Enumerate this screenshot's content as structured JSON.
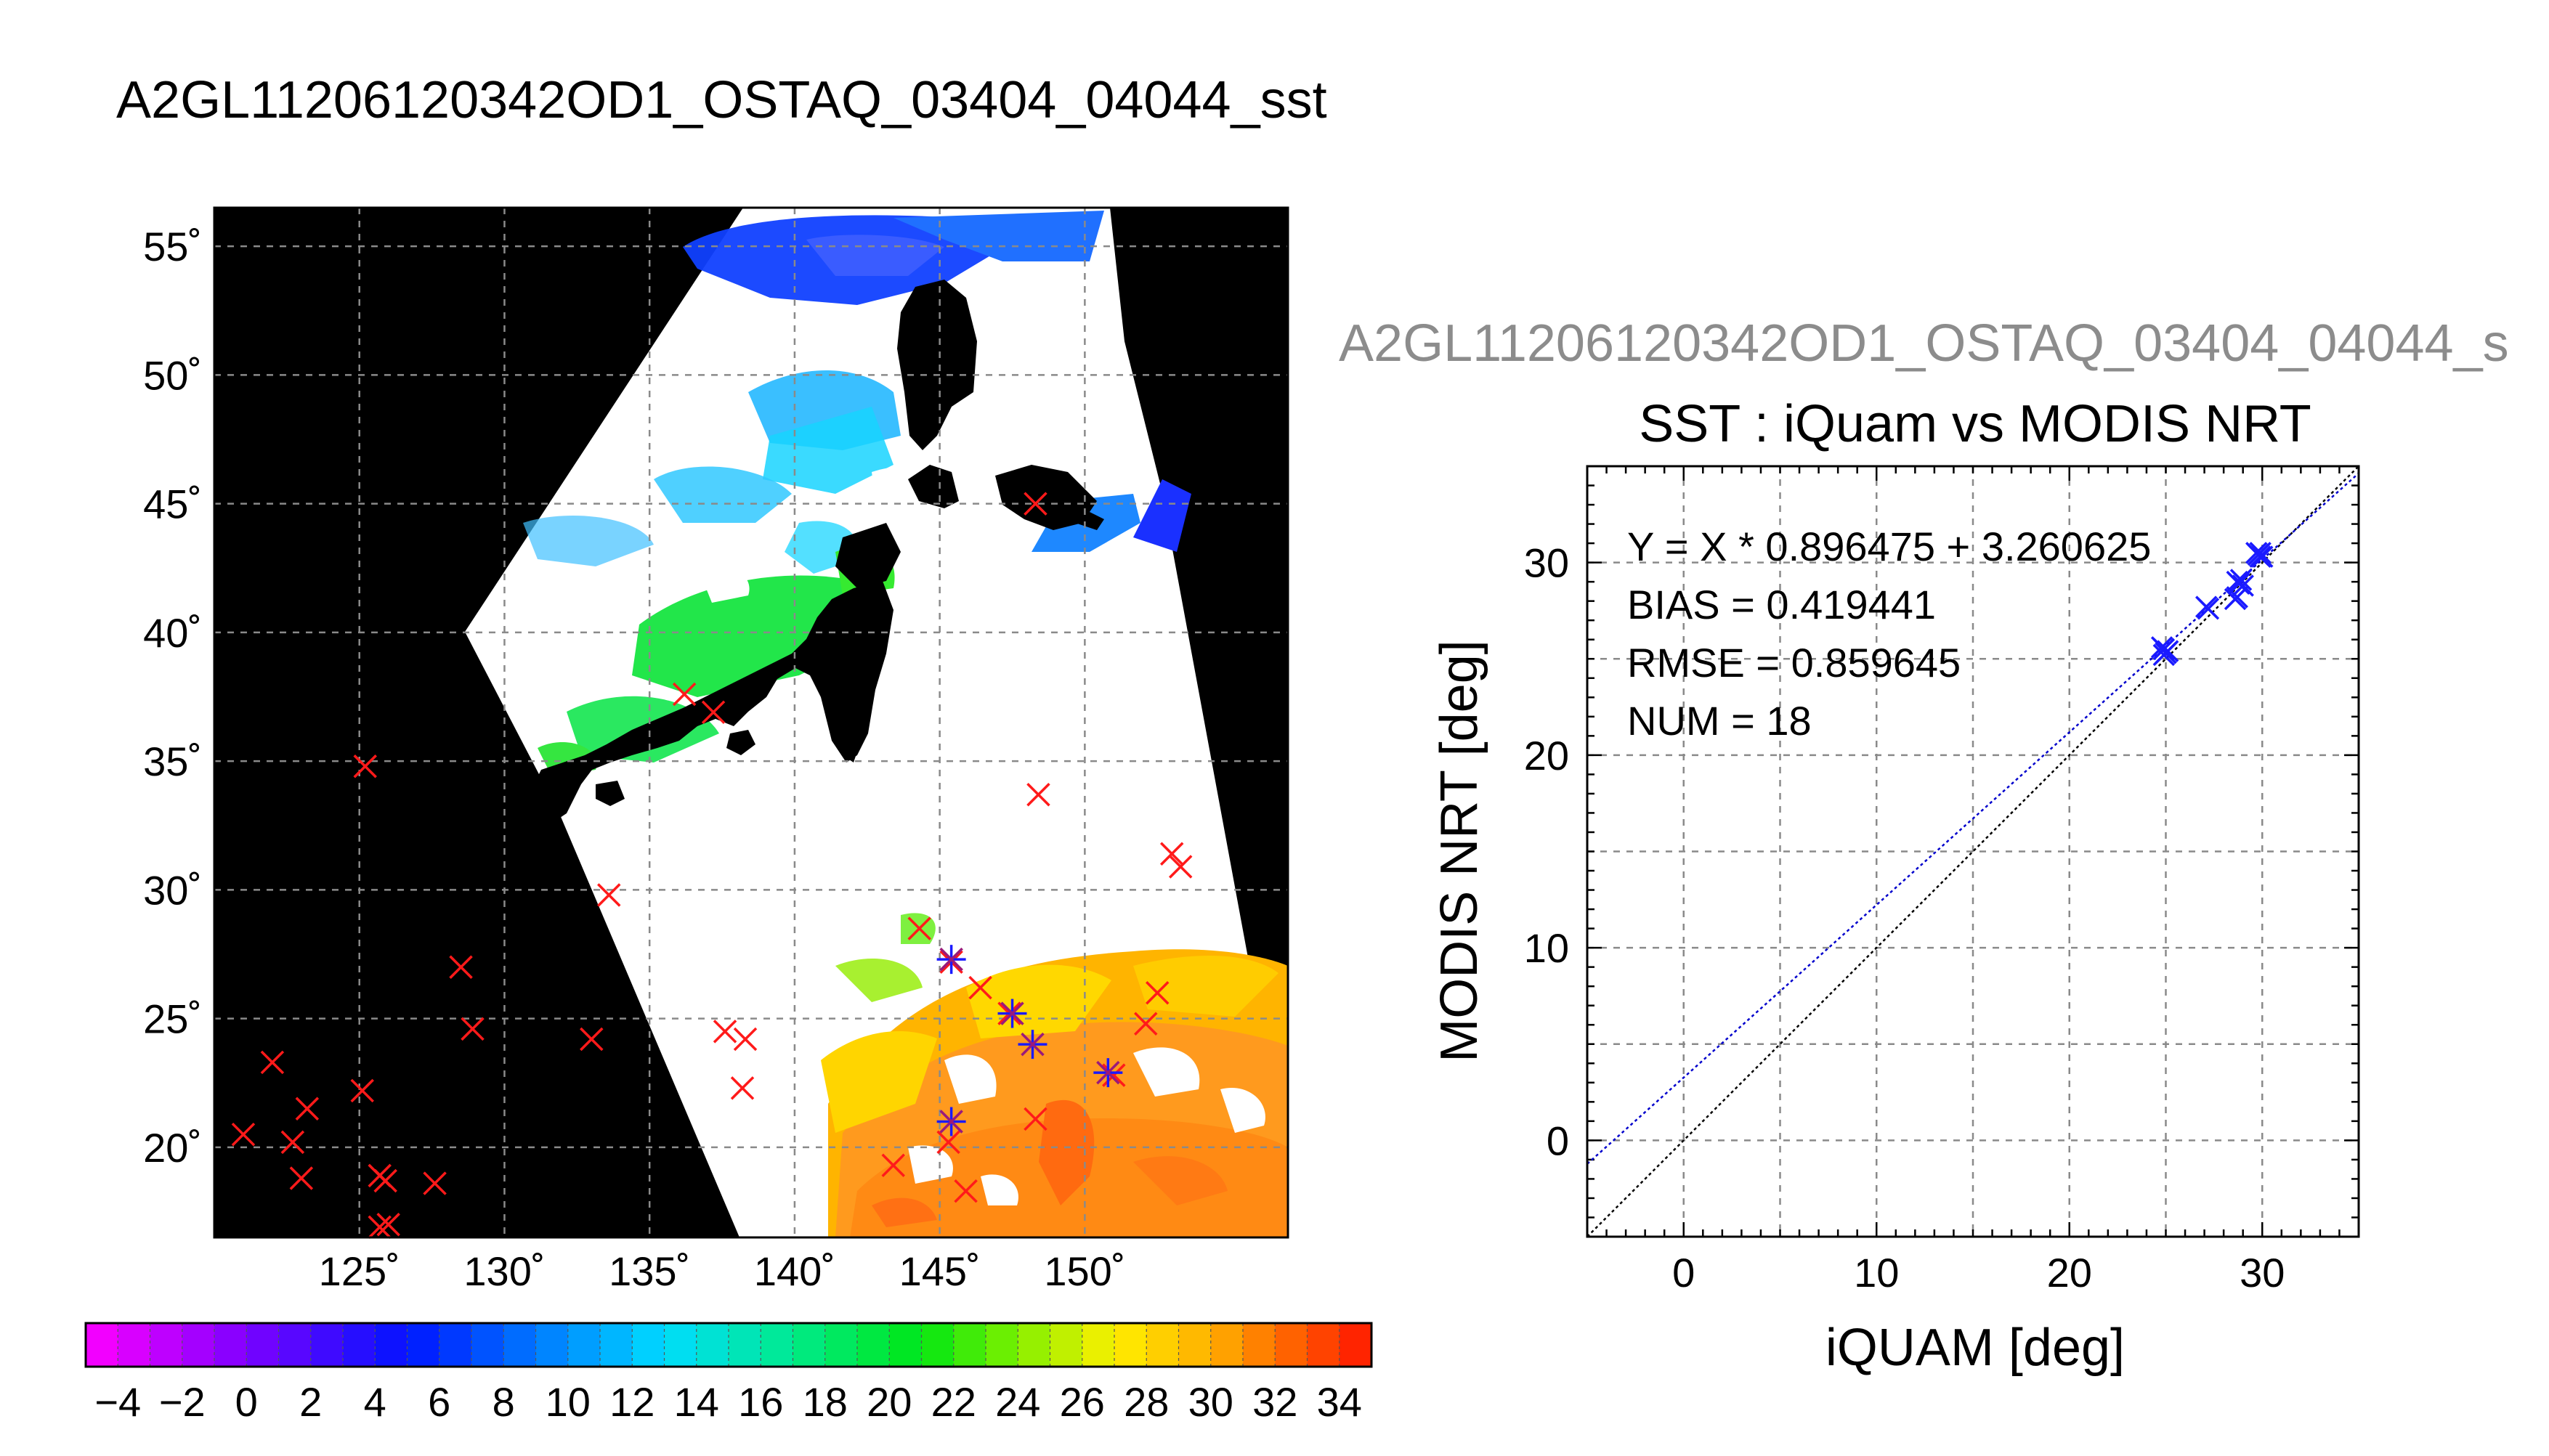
{
  "page": {
    "map_title": "A2GL11206120342OD1_OSTAQ_03404_04044_sst",
    "scatter_header": "A2GL11206120342OD1_OSTAQ_03404_04044_s"
  },
  "colors": {
    "grid": "#8a8a8a",
    "land": "#000000",
    "cloud": "#ffffff",
    "insitu_marker": "#ff1a1a",
    "matchup_marker": "#1a1aff",
    "fit_line": "#0000cc",
    "one_to_one_line": "#000000",
    "header_gray": "#8c8c8c"
  },
  "map": {
    "lon_range": [
      120,
      157
    ],
    "lat_range": [
      16.5,
      56.5
    ],
    "lon_ticks": [
      125,
      130,
      135,
      140,
      145,
      150
    ],
    "lat_ticks": [
      20,
      25,
      30,
      35,
      40,
      45,
      50,
      55
    ],
    "lon_labels": [
      "125˚",
      "130˚",
      "135˚",
      "140˚",
      "145˚",
      "150˚"
    ],
    "lat_labels": [
      "20˚",
      "25˚",
      "30˚",
      "35˚",
      "40˚",
      "45˚",
      "50˚",
      "55˚"
    ],
    "insitu_points": [
      [
        125.2,
        34.8
      ],
      [
        121,
        20.5
      ],
      [
        122,
        23.3
      ],
      [
        122.7,
        20.2
      ],
      [
        123.2,
        21.5
      ],
      [
        123,
        18.8
      ],
      [
        125.1,
        22.2
      ],
      [
        125.7,
        18.9
      ],
      [
        125.9,
        18.7
      ],
      [
        125.7,
        16.9
      ],
      [
        126,
        17.0
      ],
      [
        127.6,
        18.6
      ],
      [
        128.5,
        27
      ],
      [
        128.9,
        24.6
      ],
      [
        133,
        24.2
      ],
      [
        133.6,
        29.8
      ],
      [
        136.2,
        37.6
      ],
      [
        137.2,
        36.9
      ],
      [
        137.6,
        24.5
      ],
      [
        138.3,
        24.2
      ],
      [
        138.2,
        22.3
      ],
      [
        143.4,
        19.3
      ],
      [
        144.3,
        28.5
      ],
      [
        145.4,
        27.2
      ],
      [
        145.3,
        20.2
      ],
      [
        145.9,
        18.3
      ],
      [
        146.4,
        26.2
      ],
      [
        147.4,
        25.2
      ],
      [
        148.3,
        21.1
      ],
      [
        148.4,
        33.7
      ],
      [
        148.3,
        45
      ],
      [
        151,
        22.8
      ],
      [
        152.1,
        24.8
      ],
      [
        152.5,
        26
      ],
      [
        153,
        31.4
      ],
      [
        153.3,
        30.9
      ]
    ],
    "matchup_points": [
      [
        145.4,
        27.3
      ],
      [
        145.4,
        21
      ],
      [
        147.5,
        25.2
      ],
      [
        148.2,
        24
      ],
      [
        150.8,
        22.9
      ]
    ]
  },
  "colorbar": {
    "min": -5,
    "max": 35,
    "tick_values": [
      -4,
      -2,
      0,
      2,
      4,
      6,
      8,
      10,
      12,
      14,
      16,
      18,
      20,
      22,
      24,
      26,
      28,
      30,
      32,
      34
    ],
    "tick_labels": [
      "−4",
      "−2",
      "0",
      "2",
      "4",
      "6",
      "8",
      "10",
      "12",
      "14",
      "16",
      "18",
      "20",
      "22",
      "24",
      "26",
      "28",
      "30",
      "32",
      "34"
    ]
  },
  "chart_data": {
    "type": "scatter",
    "title": "SST : iQuam vs MODIS NRT",
    "xlabel": "iQUAM [deg]",
    "ylabel": "MODIS NRT [deg]",
    "xlim": [
      -5,
      35
    ],
    "ylim": [
      -5,
      35
    ],
    "x_ticks": [
      0,
      10,
      20,
      30
    ],
    "y_ticks": [
      0,
      10,
      20,
      30
    ],
    "grid": true,
    "annotations": [
      "Y = X * 0.896475 + 3.260625",
      "BIAS = 0.419441",
      "RMSE = 0.859645",
      "NUM = 18"
    ],
    "fit": {
      "slope": 0.896475,
      "intercept": 3.260625
    },
    "points": [
      [
        24.8,
        25.6
      ],
      [
        24.9,
        25.5
      ],
      [
        25.0,
        25.3
      ],
      [
        25.1,
        25.4
      ],
      [
        24.9,
        25.2
      ],
      [
        27.1,
        27.7
      ],
      [
        27.2,
        27.6
      ],
      [
        28.6,
        28.1
      ],
      [
        28.7,
        28.2
      ],
      [
        28.8,
        28.9
      ],
      [
        28.9,
        29.1
      ],
      [
        29.0,
        28.8
      ],
      [
        28.7,
        29.0
      ],
      [
        29.8,
        30.4
      ],
      [
        29.9,
        30.5
      ],
      [
        30.0,
        30.3
      ],
      [
        29.7,
        30.5
      ],
      [
        29.9,
        30.3
      ]
    ]
  }
}
